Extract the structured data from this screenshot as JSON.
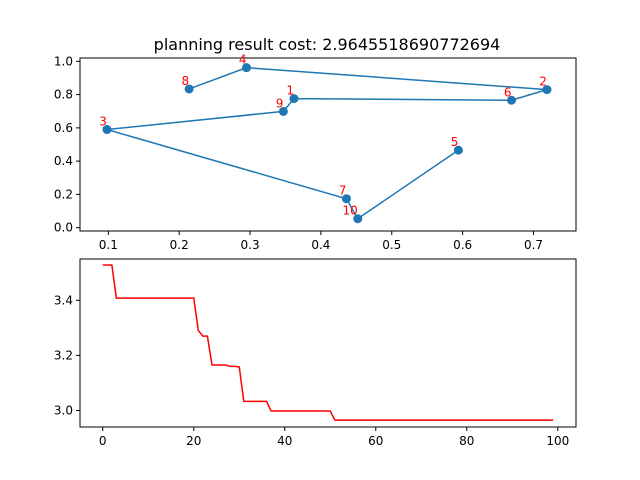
{
  "colors": {
    "route": "#1f77b4",
    "cost": "#ff0000",
    "label": "#ff0000"
  },
  "chart_data": [
    {
      "type": "scatter",
      "title": "planning result cost: 2.9645518690772694",
      "xlim": [
        0.06,
        0.76
      ],
      "ylim": [
        -0.02,
        1.02
      ],
      "xticks": [
        0.1,
        0.2,
        0.3,
        0.4,
        0.5,
        0.6,
        0.7
      ],
      "yticks": [
        0.0,
        0.2,
        0.4,
        0.6,
        0.8,
        1.0
      ],
      "grid": false,
      "points": [
        {
          "label": "1",
          "x": 0.362,
          "y": 0.776
        },
        {
          "label": "2",
          "x": 0.719,
          "y": 0.83
        },
        {
          "label": "3",
          "x": 0.098,
          "y": 0.59
        },
        {
          "label": "4",
          "x": 0.295,
          "y": 0.962
        },
        {
          "label": "5",
          "x": 0.594,
          "y": 0.466
        },
        {
          "label": "6",
          "x": 0.669,
          "y": 0.766
        },
        {
          "label": "7",
          "x": 0.436,
          "y": 0.174
        },
        {
          "label": "8",
          "x": 0.214,
          "y": 0.834
        },
        {
          "label": "9",
          "x": 0.347,
          "y": 0.699
        },
        {
          "label": "10",
          "x": 0.452,
          "y": 0.054
        }
      ],
      "route": [
        "5",
        "10",
        "7",
        "3",
        "9",
        "1",
        "6",
        "2",
        "4",
        "8"
      ]
    },
    {
      "type": "line",
      "xlim": [
        -5,
        104
      ],
      "ylim": [
        2.94,
        3.55
      ],
      "xticks": [
        0,
        20,
        40,
        60,
        80,
        100
      ],
      "yticks": [
        3.0,
        3.2,
        3.4
      ],
      "grid": false,
      "series": [
        {
          "x": [
            0,
            2,
            3,
            20,
            21,
            22,
            23,
            24,
            27,
            28,
            29,
            30,
            31,
            36,
            37,
            38,
            49,
            50,
            51,
            99
          ],
          "y": [
            3.528,
            3.528,
            3.408,
            3.408,
            3.29,
            3.27,
            3.27,
            3.165,
            3.165,
            3.16,
            3.16,
            3.158,
            3.033,
            3.033,
            2.998,
            2.998,
            2.998,
            2.998,
            2.965,
            2.965
          ]
        }
      ]
    }
  ]
}
